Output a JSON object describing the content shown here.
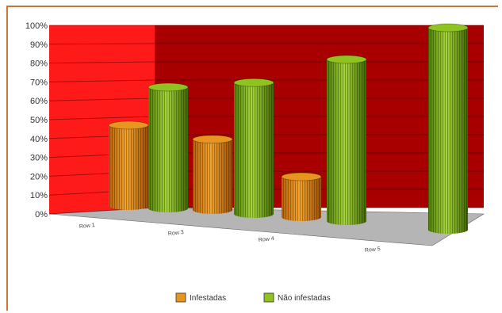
{
  "chart_data": {
    "type": "bar",
    "style": "3d-cylinder",
    "categories": [
      "Row 1",
      "Row 3",
      "Row 4",
      "Row 5"
    ],
    "series": [
      {
        "name": "Infestadas",
        "values": [
          40,
          35,
          20,
          0
        ],
        "color": "#e8951f"
      },
      {
        "name": "Não infestadas",
        "values": [
          60,
          65,
          80,
          100
        ],
        "color": "#8fc31f"
      }
    ],
    "ylim": [
      0,
      100
    ],
    "yticks": [
      "0%",
      "10%",
      "20%",
      "30%",
      "40%",
      "50%",
      "60%",
      "70%",
      "80%",
      "90%",
      "100%"
    ],
    "grid": true,
    "legend": "bottom-center",
    "colors": {
      "left_wall": "#ff1a1a",
      "back_wall": "#a80000",
      "floor": "#b5b5b5",
      "frame": "#c8763a"
    }
  }
}
